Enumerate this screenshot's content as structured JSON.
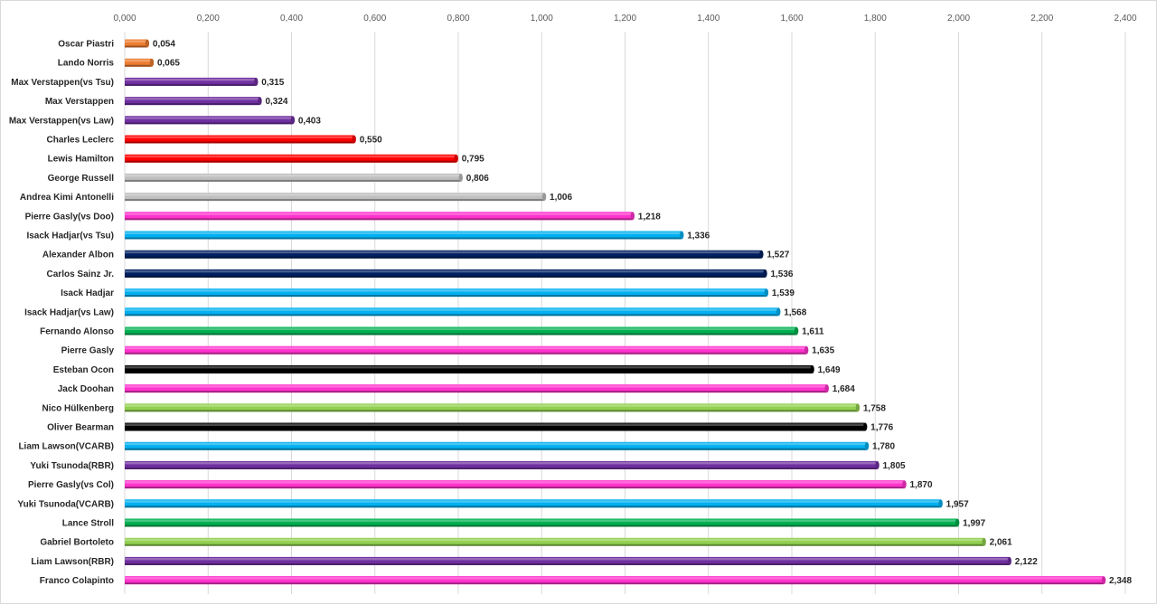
{
  "chart_data": {
    "type": "bar",
    "orientation": "horizontal",
    "title": "",
    "xlabel": "",
    "ylabel": "",
    "xlim": [
      0,
      2.4
    ],
    "x_tick_step": 0.2,
    "tick_labels": [
      "0,000",
      "0,200",
      "0,400",
      "0,600",
      "0,800",
      "1,000",
      "1,200",
      "1,400",
      "1,600",
      "1,800",
      "2,000",
      "2,200",
      "2,400"
    ],
    "x_axis_position": "top",
    "grid": true,
    "legend": "none",
    "categories": [
      "Oscar Piastri",
      "Lando Norris",
      "Max Verstappen(vs Tsu)",
      "Max Verstappen",
      "Max Verstappen(vs Law)",
      "Charles Leclerc",
      "Lewis Hamilton",
      "George Russell",
      "Andrea Kimi Antonelli",
      "Pierre Gasly(vs Doo)",
      "Isack Hadjar(vs Tsu)",
      "Alexander Albon",
      "Carlos Sainz Jr.",
      "Isack Hadjar",
      "Isack Hadjar(vs Law)",
      "Fernando Alonso",
      "Pierre Gasly",
      "Esteban Ocon",
      "Jack Doohan",
      "Nico Hülkenberg",
      "Oliver Bearman",
      "Liam Lawson(VCARB)",
      "Yuki Tsunoda(RBR)",
      "Pierre Gasly(vs Col)",
      "Yuki Tsunoda(VCARB)",
      "Lance Stroll",
      "Gabriel Bortoleto",
      "Liam Lawson(RBR)",
      "Franco Colapinto"
    ],
    "values": [
      0.054,
      0.065,
      0.315,
      0.324,
      0.403,
      0.55,
      0.795,
      0.806,
      1.006,
      1.218,
      1.336,
      1.527,
      1.536,
      1.539,
      1.568,
      1.611,
      1.635,
      1.649,
      1.684,
      1.758,
      1.776,
      1.78,
      1.805,
      1.87,
      1.957,
      1.997,
      2.061,
      2.122,
      2.348
    ],
    "value_labels": [
      "0,054",
      "0,065",
      "0,315",
      "0,324",
      "0,403",
      "0,550",
      "0,795",
      "0,806",
      "1,006",
      "1,218",
      "1,336",
      "1,527",
      "1,536",
      "1,539",
      "1,568",
      "1,611",
      "1,635",
      "1,649",
      "1,684",
      "1,758",
      "1,776",
      "1,780",
      "1,805",
      "1,870",
      "1,957",
      "1,997",
      "2,061",
      "2,122",
      "2,348"
    ],
    "colors": [
      "#ED7D31",
      "#ED7D31",
      "#7030A0",
      "#7030A0",
      "#7030A0",
      "#FF0000",
      "#FF0000",
      "#BFBFBF",
      "#BFBFBF",
      "#FF33CC",
      "#00B0F0",
      "#002060",
      "#002060",
      "#00B0F0",
      "#00B0F0",
      "#00B050",
      "#FF33CC",
      "#000000",
      "#FF33CC",
      "#92D050",
      "#000000",
      "#00B0F0",
      "#7030A0",
      "#FF33CC",
      "#00B0F0",
      "#00B050",
      "#92D050",
      "#7030A0",
      "#FF33CC"
    ]
  }
}
